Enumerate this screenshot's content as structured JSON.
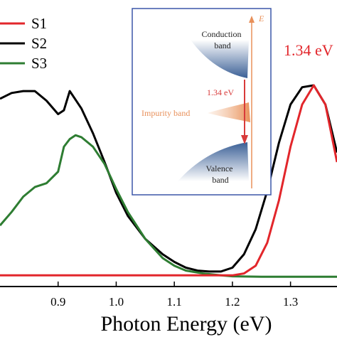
{
  "chart_data": {
    "type": "line",
    "xlabel": "Photon Energy (eV)",
    "xlim": [
      0.8,
      1.38
    ],
    "ylim": [
      0,
      1.12
    ],
    "x_ticks": [
      "0.9",
      "1.0",
      "1.1",
      "1.2",
      "1.3"
    ],
    "x_tick_values": [
      0.9,
      1.0,
      1.1,
      1.2,
      1.3
    ],
    "annotation": "1.34 eV",
    "series": [
      {
        "name": "S1",
        "color": "#e2262b",
        "x": [
          0.8,
          0.9,
          1.0,
          1.1,
          1.2,
          1.22,
          1.24,
          1.26,
          1.28,
          1.3,
          1.32,
          1.34,
          1.36,
          1.38
        ],
        "y": [
          0.01,
          0.01,
          0.01,
          0.01,
          0.01,
          0.02,
          0.06,
          0.18,
          0.4,
          0.68,
          0.9,
          1.0,
          0.9,
          0.6
        ]
      },
      {
        "name": "S2",
        "color": "#000000",
        "x": [
          0.8,
          0.82,
          0.84,
          0.86,
          0.88,
          0.9,
          0.91,
          0.92,
          0.94,
          0.96,
          0.98,
          1.0,
          1.02,
          1.05,
          1.08,
          1.1,
          1.12,
          1.14,
          1.16,
          1.18,
          1.2,
          1.22,
          1.24,
          1.26,
          1.28,
          1.3,
          1.32,
          1.34,
          1.36,
          1.38
        ],
        "y": [
          0.93,
          0.96,
          0.97,
          0.97,
          0.92,
          0.85,
          0.87,
          0.97,
          0.88,
          0.75,
          0.6,
          0.44,
          0.32,
          0.2,
          0.12,
          0.08,
          0.05,
          0.035,
          0.03,
          0.03,
          0.05,
          0.12,
          0.25,
          0.45,
          0.7,
          0.9,
          0.99,
          1.0,
          0.9,
          0.65
        ]
      },
      {
        "name": "S3",
        "color": "#2e7d32",
        "x": [
          0.8,
          0.82,
          0.84,
          0.86,
          0.88,
          0.9,
          0.91,
          0.92,
          0.93,
          0.94,
          0.96,
          0.98,
          1.0,
          1.02,
          1.05,
          1.08,
          1.1,
          1.12,
          1.15,
          1.18,
          1.2,
          1.25,
          1.3,
          1.38
        ],
        "y": [
          0.27,
          0.34,
          0.42,
          0.47,
          0.49,
          0.55,
          0.68,
          0.72,
          0.74,
          0.73,
          0.68,
          0.59,
          0.46,
          0.34,
          0.2,
          0.1,
          0.06,
          0.035,
          0.02,
          0.01,
          0.005,
          0.003,
          0.003,
          0.003
        ]
      }
    ]
  },
  "inset": {
    "conduction_label_1": "Conduction",
    "conduction_label_2": "band",
    "transition_label": "1.34 eV",
    "impurity_label": "Impurity band",
    "valence_label_1": "Valence",
    "valence_label_2": "band",
    "energy_axis_label": "E"
  }
}
